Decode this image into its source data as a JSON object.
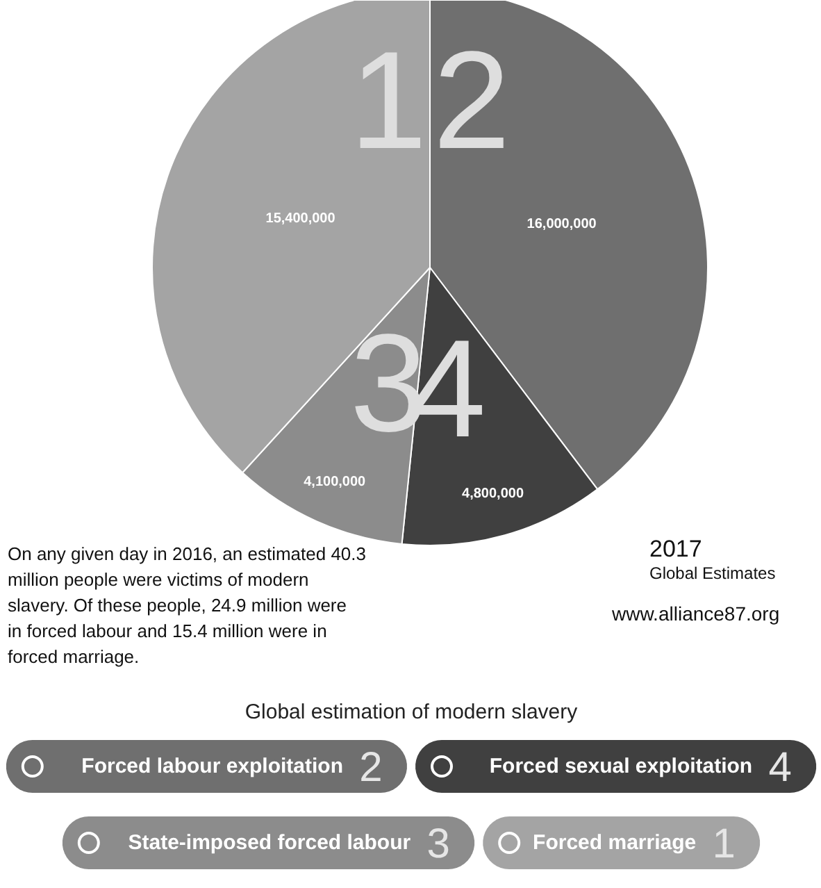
{
  "chart_data": {
    "type": "pie",
    "categories": [
      "Forced labour exploitation",
      "Forced sexual exploitation",
      "State-imposed forced labour",
      "Forced marriage"
    ],
    "values": [
      16000000,
      4800000,
      4100000,
      15400000
    ],
    "colors": [
      "#6f6f6f",
      "#404040",
      "#8c8c8c",
      "#a4a4a4"
    ],
    "value_labels": [
      "16,000,000",
      "4,800,000",
      "4,100,000",
      "15,400,000"
    ],
    "legend": "bottom",
    "legend_title": "Global estimation of modern slavery",
    "annotations": [
      {
        "text": "2"
      },
      {
        "text": "4"
      },
      {
        "text": "3"
      },
      {
        "text": "1"
      },
      "On any given day in 2016, an estimated 40.3 million people were victims of modern slavery. Of these people, 24.9 million were in forced labour and 15.4 million were in forced marriage.",
      "2017",
      "Global Estimates",
      "www.alliance87.org"
    ]
  }
}
